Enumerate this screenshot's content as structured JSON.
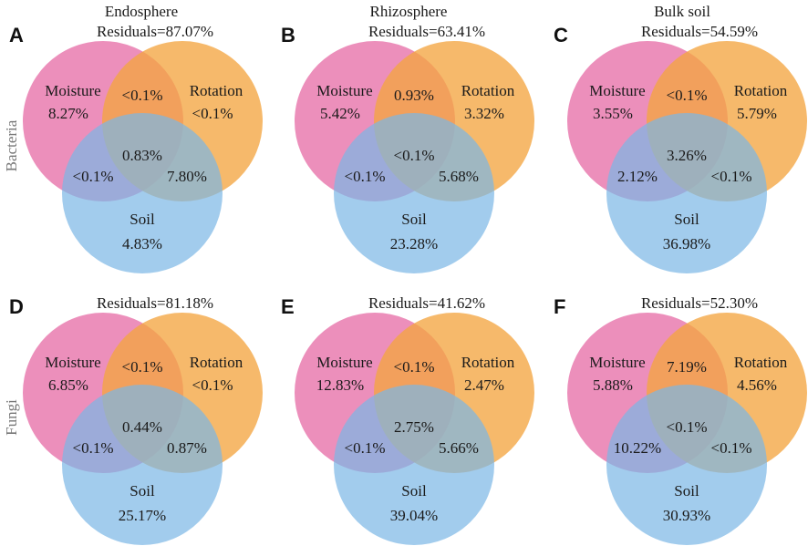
{
  "colors": {
    "moisture": "#e76fa8",
    "rotation": "#f4a541",
    "soil": "#7ab6e6"
  },
  "column_titles": [
    "Endosphere",
    "Rhizosphere",
    "Bulk soil"
  ],
  "row_labels": [
    "Bacteria",
    "Fungi"
  ],
  "set_names": {
    "moisture": "Moisture",
    "rotation": "Rotation",
    "soil": "Soil"
  },
  "panels": [
    {
      "letter": "A",
      "residuals": "Residuals=87.07%",
      "moisture": "8.27%",
      "rotation": "<0.1%",
      "soil": "4.83%",
      "mr": "<0.1%",
      "ms": "<0.1%",
      "rs": "7.80%",
      "mrs": "0.83%"
    },
    {
      "letter": "B",
      "residuals": "Residuals=63.41%",
      "moisture": "5.42%",
      "rotation": "3.32%",
      "soil": "23.28%",
      "mr": "0.93%",
      "ms": "<0.1%",
      "rs": "5.68%",
      "mrs": "<0.1%"
    },
    {
      "letter": "C",
      "residuals": "Residuals=54.59%",
      "moisture": "3.55%",
      "rotation": "5.79%",
      "soil": "36.98%",
      "mr": "<0.1%",
      "ms": "2.12%",
      "rs": "<0.1%",
      "mrs": "3.26%"
    },
    {
      "letter": "D",
      "residuals": "Residuals=81.18%",
      "moisture": "6.85%",
      "rotation": "<0.1%",
      "soil": "25.17%",
      "mr": "<0.1%",
      "ms": "<0.1%",
      "rs": "0.87%",
      "mrs": "0.44%"
    },
    {
      "letter": "E",
      "residuals": "Residuals=41.62%",
      "moisture": "12.83%",
      "rotation": "2.47%",
      "soil": "39.04%",
      "mr": "<0.1%",
      "ms": "<0.1%",
      "rs": "5.66%",
      "mrs": "2.75%"
    },
    {
      "letter": "F",
      "residuals": "Residuals=52.30%",
      "moisture": "5.88%",
      "rotation": "4.56%",
      "soil": "30.93%",
      "mr": "7.19%",
      "ms": "10.22%",
      "rs": "<0.1%",
      "mrs": "<0.1%"
    }
  ]
}
